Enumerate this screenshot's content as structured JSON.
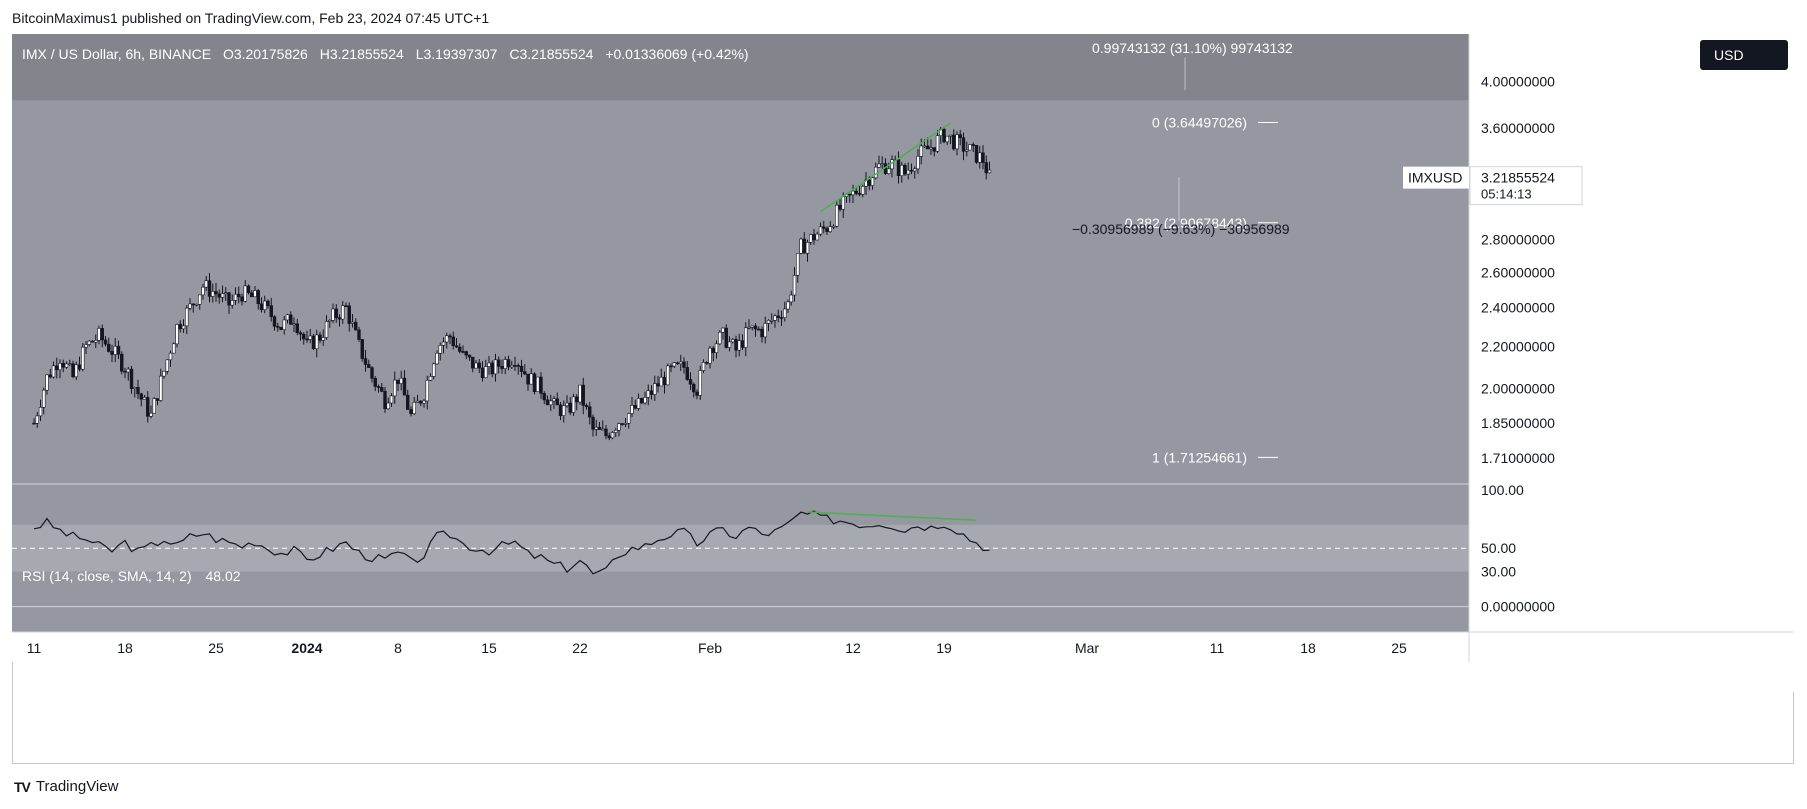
{
  "header": {
    "published_by": "BitcoinMaximus1 published on TradingView.com, Feb 23, 2024 07:45 UTC+1"
  },
  "footer": {
    "brand": "TradingView",
    "logo_text": "TV"
  },
  "currency_button": "USD",
  "legend": {
    "symbol": "IMX / US Dollar, 6h, BINANCE",
    "o_label": "O",
    "o_value": "3.20175826",
    "h_label": "H",
    "h_value": "3.21855524",
    "l_label": "L",
    "l_value": "3.19397307",
    "c_label": "C",
    "c_value": "3.21855524",
    "change": "+0.01336069 (+0.42%)"
  },
  "rsi_legend": {
    "label": "RSI (14, close, SMA, 14, 2)",
    "value": "48.02"
  },
  "price_tag": {
    "symbol": "IMXUSD",
    "price": "3.21855524",
    "countdown": "05:14:13"
  },
  "colors": {
    "pane_bg": "#9598a1",
    "upper_band": "#808389",
    "rsi_band": "#a7a9b0",
    "candle": "#131722",
    "trend_line": "#4caf50",
    "price_tag_bg": "#ffffff"
  },
  "chart_data": {
    "type": "candlestick",
    "symbol": "IMX/USD",
    "timeframe": "6h",
    "exchange": "BINANCE",
    "price_axis": {
      "labels": [
        "4.00000000",
        "3.60000000",
        "2.80000000",
        "2.60000000",
        "2.40000000",
        "2.20000000",
        "2.00000000",
        "1.85000000",
        "1.71000000"
      ],
      "values": [
        4.0,
        3.6,
        2.8,
        2.6,
        2.4,
        2.2,
        2.0,
        1.85,
        1.71
      ]
    },
    "time_axis": {
      "labels": [
        "11",
        "18",
        "25",
        "2024",
        "8",
        "15",
        "22",
        "Feb",
        "12",
        "19",
        "Mar",
        "11",
        "18",
        "25"
      ],
      "days": [
        0,
        7,
        14,
        21,
        28,
        35,
        42,
        52,
        63,
        70,
        81,
        91,
        98,
        105
      ]
    },
    "close_path": [
      [
        0,
        1.85
      ],
      [
        1,
        2.05
      ],
      [
        2,
        2.15
      ],
      [
        3,
        2.05
      ],
      [
        4,
        2.2
      ],
      [
        5,
        2.25
      ],
      [
        6,
        2.18
      ],
      [
        7,
        2.1
      ],
      [
        8,
        1.98
      ],
      [
        9,
        1.88
      ],
      [
        10,
        2.08
      ],
      [
        11,
        2.3
      ],
      [
        12,
        2.4
      ],
      [
        13,
        2.52
      ],
      [
        14,
        2.48
      ],
      [
        15,
        2.42
      ],
      [
        16,
        2.48
      ],
      [
        17,
        2.45
      ],
      [
        18,
        2.38
      ],
      [
        19,
        2.3
      ],
      [
        20,
        2.35
      ],
      [
        21,
        2.2
      ],
      [
        22,
        2.25
      ],
      [
        23,
        2.35
      ],
      [
        24,
        2.4
      ],
      [
        25,
        2.2
      ],
      [
        26,
        2.05
      ],
      [
        27,
        1.95
      ],
      [
        28,
        2.05
      ],
      [
        29,
        1.88
      ],
      [
        30,
        1.98
      ],
      [
        31,
        2.2
      ],
      [
        32,
        2.25
      ],
      [
        33,
        2.15
      ],
      [
        34,
        2.1
      ],
      [
        35,
        2.08
      ],
      [
        36,
        2.12
      ],
      [
        37,
        2.15
      ],
      [
        38,
        2.05
      ],
      [
        39,
        2.0
      ],
      [
        40,
        1.92
      ],
      [
        41,
        1.9
      ],
      [
        42,
        1.98
      ],
      [
        43,
        1.82
      ],
      [
        44,
        1.8
      ],
      [
        45,
        1.86
      ],
      [
        46,
        1.9
      ],
      [
        47,
        1.95
      ],
      [
        48,
        2.02
      ],
      [
        49,
        2.08
      ],
      [
        50,
        2.1
      ],
      [
        51,
        2.0
      ],
      [
        52,
        2.2
      ],
      [
        53,
        2.25
      ],
      [
        54,
        2.18
      ],
      [
        55,
        2.28
      ],
      [
        56,
        2.28
      ],
      [
        57,
        2.35
      ],
      [
        58,
        2.42
      ],
      [
        59,
        2.75
      ],
      [
        60,
        2.82
      ],
      [
        61,
        2.88
      ],
      [
        62,
        3.0
      ],
      [
        63,
        3.1
      ],
      [
        64,
        3.2
      ],
      [
        65,
        3.3
      ],
      [
        66,
        3.32
      ],
      [
        67,
        3.25
      ],
      [
        68,
        3.38
      ],
      [
        69,
        3.45
      ],
      [
        70,
        3.55
      ],
      [
        71,
        3.48
      ],
      [
        72,
        3.42
      ],
      [
        73,
        3.35
      ],
      [
        73.5,
        3.22
      ]
    ],
    "rsi_axis": {
      "labels": [
        "100.00",
        "50.00",
        "30.00",
        "0.00000000"
      ],
      "values": [
        100,
        50,
        30,
        0
      ]
    },
    "rsi_path": [
      [
        0,
        68
      ],
      [
        1,
        72
      ],
      [
        2,
        65
      ],
      [
        3,
        60
      ],
      [
        4,
        58
      ],
      [
        5,
        52
      ],
      [
        6,
        48
      ],
      [
        7,
        55
      ],
      [
        8,
        47
      ],
      [
        9,
        52
      ],
      [
        10,
        58
      ],
      [
        11,
        52
      ],
      [
        12,
        60
      ],
      [
        13,
        63
      ],
      [
        14,
        58
      ],
      [
        15,
        55
      ],
      [
        16,
        52
      ],
      [
        17,
        56
      ],
      [
        18,
        50
      ],
      [
        19,
        46
      ],
      [
        20,
        48
      ],
      [
        21,
        40
      ],
      [
        22,
        45
      ],
      [
        23,
        50
      ],
      [
        24,
        55
      ],
      [
        25,
        46
      ],
      [
        26,
        42
      ],
      [
        27,
        40
      ],
      [
        28,
        46
      ],
      [
        29,
        38
      ],
      [
        30,
        44
      ],
      [
        31,
        60
      ],
      [
        32,
        62
      ],
      [
        33,
        54
      ],
      [
        34,
        50
      ],
      [
        35,
        48
      ],
      [
        36,
        52
      ],
      [
        37,
        55
      ],
      [
        38,
        45
      ],
      [
        39,
        42
      ],
      [
        40,
        36
      ],
      [
        41,
        33
      ],
      [
        42,
        40
      ],
      [
        43,
        28
      ],
      [
        44,
        30
      ],
      [
        45,
        45
      ],
      [
        46,
        50
      ],
      [
        47,
        52
      ],
      [
        48,
        58
      ],
      [
        49,
        62
      ],
      [
        50,
        64
      ],
      [
        51,
        54
      ],
      [
        52,
        62
      ],
      [
        53,
        66
      ],
      [
        54,
        60
      ],
      [
        55,
        68
      ],
      [
        56,
        62
      ],
      [
        57,
        64
      ],
      [
        58,
        70
      ],
      [
        59,
        80
      ],
      [
        60,
        78
      ],
      [
        61,
        75
      ],
      [
        62,
        74
      ],
      [
        63,
        72
      ],
      [
        64,
        70
      ],
      [
        65,
        72
      ],
      [
        66,
        70
      ],
      [
        67,
        66
      ],
      [
        68,
        70
      ],
      [
        69,
        68
      ],
      [
        70,
        72
      ],
      [
        71,
        66
      ],
      [
        72,
        58
      ],
      [
        73,
        52
      ],
      [
        73.5,
        48
      ]
    ],
    "rsi_bands": {
      "upper": 70,
      "mid": 50,
      "lower": 30
    },
    "fibonacci": [
      {
        "label": "0 (3.64497026)",
        "level": 0,
        "price": 3.64497026
      },
      {
        "label": "0.382 (2.90678443)",
        "level": 0.382,
        "price": 2.90678443
      },
      {
        "label": "1 (1.71254661)",
        "level": 1,
        "price": 1.71254661
      }
    ],
    "measure_annotations": [
      {
        "text": "0.99743132 (31.10%) 99743132",
        "anchor_price": 4.3
      },
      {
        "text": "−0.30956989 (−9.63%) −30956989",
        "anchor_price": 2.86
      }
    ],
    "trend_lines": [
      {
        "pane": "price",
        "from": [
          60.5,
          2.98
        ],
        "to": [
          70.5,
          3.64
        ]
      },
      {
        "pane": "rsi",
        "from": [
          59.5,
          81
        ],
        "to": [
          72.5,
          74
        ]
      }
    ]
  }
}
